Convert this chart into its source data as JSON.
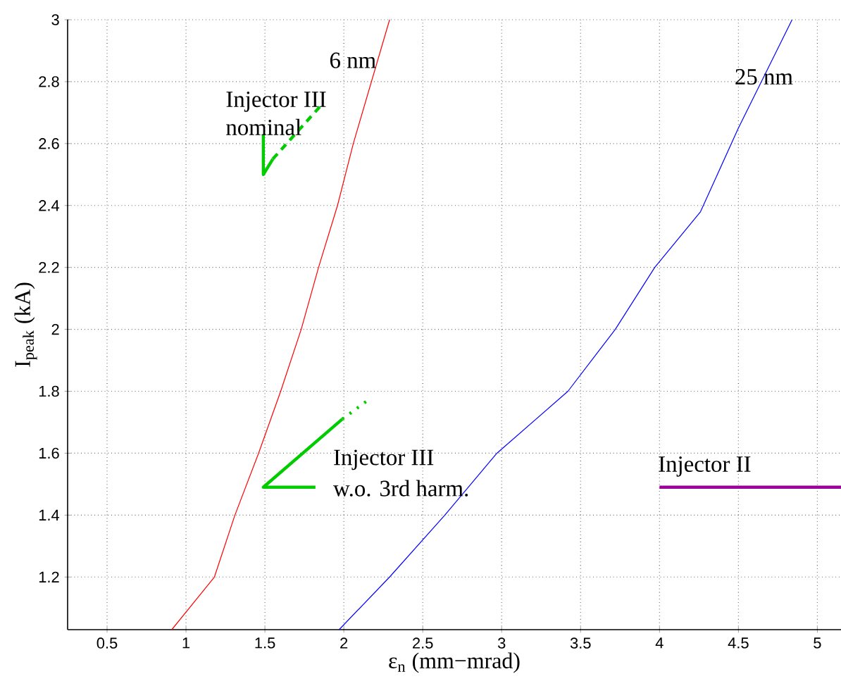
{
  "chart_data": {
    "type": "line",
    "xlabel": "ε$_{n}$ (mm−mrad)",
    "ylabel": "I$_{peak}$ (kA)",
    "xlim": [
      0.25,
      5.15
    ],
    "ylim": [
      1.03,
      3
    ],
    "xticks": [
      0.5,
      1,
      1.5,
      2,
      2.5,
      3,
      3.5,
      4,
      4.5,
      5
    ],
    "yticks": [
      1.2,
      1.4,
      1.6,
      1.8,
      2,
      2.2,
      2.4,
      2.6,
      2.8,
      3
    ],
    "grid": true,
    "marker": "none",
    "series": [
      {
        "color": "#ff0000",
        "line_style": "solid",
        "x": [
          0.91,
          1.18,
          1.31,
          1.46,
          1.6,
          1.73,
          1.84,
          1.96,
          2.06,
          2.29
        ],
        "values": [
          1.03,
          1.2,
          1.4,
          1.6,
          1.8,
          2.0,
          2.2,
          2.4,
          2.6,
          3.0
        ]
      },
      {
        "color": "#0000ff",
        "line_style": "solid",
        "x": [
          1.97,
          2.29,
          2.64,
          2.97,
          3.42,
          3.72,
          3.97,
          4.26,
          4.5,
          4.84
        ],
        "values": [
          1.03,
          1.2,
          1.4,
          1.6,
          1.8,
          2.0,
          2.2,
          2.38,
          2.65,
          3.0
        ]
      },
      {
        "color": "#00cc00",
        "line_style": "solid",
        "x": [
          1.82,
          1.49,
          1.99
        ],
        "values": [
          1.49,
          1.49,
          1.71
        ]
      },
      {
        "color": "#00cc00",
        "line_style": "dotted",
        "x": [
          1.99,
          2.15
        ],
        "values": [
          1.71,
          1.77
        ]
      },
      {
        "color": "#00cc00",
        "line_style": "solid",
        "x": [
          1.49,
          1.49,
          1.55
        ],
        "values": [
          2.63,
          2.5,
          2.55
        ]
      },
      {
        "color": "#00cc00",
        "line_style": "dashed",
        "x": [
          1.55,
          1.85
        ],
        "values": [
          2.55,
          2.72
        ]
      },
      {
        "color": "#990099",
        "line_style": "solid",
        "x": [
          4,
          5.15
        ],
        "values": [
          1.49,
          1.49
        ]
      }
    ],
    "annotations": [
      "6 nm",
      "25 nm",
      "Injector III",
      "nominal",
      "Injector III",
      "w.o. 3rd harm.",
      "Injector II"
    ]
  }
}
